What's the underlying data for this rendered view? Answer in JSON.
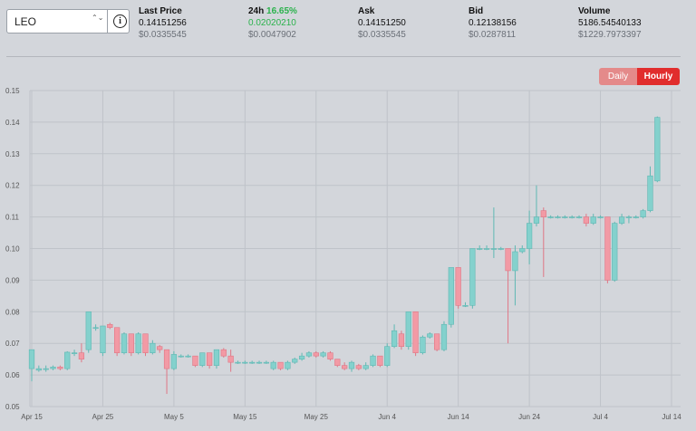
{
  "market": {
    "pair": "LEO",
    "arrows": "⌃⌄",
    "info_glyph": "i"
  },
  "stats": {
    "last_price": {
      "label": "Last Price",
      "value": "0.14151256",
      "usd": "$0.0335545"
    },
    "change_24h": {
      "label": "24h",
      "percent": "16.65%",
      "value": "0.02020210",
      "usd": "$0.0047902"
    },
    "ask": {
      "label": "Ask",
      "value": "0.14151250",
      "usd": "$0.0335545"
    },
    "bid": {
      "label": "Bid",
      "value": "0.12138156",
      "usd": "$0.0287811"
    },
    "volume": {
      "label": "Volume",
      "value": "5186.54540133",
      "usd": "$1229.7973397"
    }
  },
  "toggle": {
    "daily": "Daily",
    "hourly": "Hourly",
    "active": "Hourly"
  },
  "colors": {
    "up": "#84d1cd",
    "down": "#f29aa5",
    "active_button": "#e12d2d",
    "inactive_button": "#e48a8a",
    "positive_text": "#2bb24c"
  },
  "chart_data": {
    "type": "candlestick",
    "title": "",
    "xlabel": "",
    "ylabel": "",
    "ylim": [
      0.05,
      0.15
    ],
    "grid": true,
    "y_ticks": [
      "0.15",
      "0.14",
      "0.13",
      "0.12",
      "0.11",
      "0.10",
      "0.09",
      "0.08",
      "0.07",
      "0.06",
      "0.05"
    ],
    "x_ticks": [
      "Apr 15",
      "Apr 25",
      "May 5",
      "May 15",
      "May 25",
      "Jun 4",
      "Jun 14",
      "Jun 24",
      "Jul 4",
      "Jul 14"
    ],
    "x_start": "Apr 15",
    "x_end": "Jul 14",
    "candles": [
      {
        "date": "Apr 15",
        "open": 0.062,
        "close": 0.068,
        "high": 0.068,
        "low": 0.058
      },
      {
        "date": "Apr 16",
        "open": 0.0615,
        "close": 0.062,
        "high": 0.063,
        "low": 0.061
      },
      {
        "date": "Apr 17",
        "open": 0.062,
        "close": 0.062,
        "high": 0.063,
        "low": 0.061
      },
      {
        "date": "Apr 18",
        "open": 0.062,
        "close": 0.0625,
        "high": 0.063,
        "low": 0.0615
      },
      {
        "date": "Apr 19",
        "open": 0.0625,
        "close": 0.062,
        "high": 0.063,
        "low": 0.0615
      },
      {
        "date": "Apr 20",
        "open": 0.062,
        "close": 0.0672,
        "high": 0.0675,
        "low": 0.0615
      },
      {
        "date": "Apr 21",
        "open": 0.067,
        "close": 0.067,
        "high": 0.068,
        "low": 0.066
      },
      {
        "date": "Apr 22",
        "open": 0.067,
        "close": 0.065,
        "high": 0.07,
        "low": 0.064
      },
      {
        "date": "Apr 23",
        "open": 0.068,
        "close": 0.08,
        "high": 0.08,
        "low": 0.067
      },
      {
        "date": "Apr 24",
        "open": 0.075,
        "close": 0.075,
        "high": 0.076,
        "low": 0.074
      },
      {
        "date": "Apr 25",
        "open": 0.067,
        "close": 0.0755,
        "high": 0.0755,
        "low": 0.066
      },
      {
        "date": "Apr 26",
        "open": 0.076,
        "close": 0.075,
        "high": 0.0765,
        "low": 0.0745
      },
      {
        "date": "Apr 27",
        "open": 0.075,
        "close": 0.067,
        "high": 0.075,
        "low": 0.066
      },
      {
        "date": "Apr 28",
        "open": 0.067,
        "close": 0.073,
        "high": 0.0735,
        "low": 0.0665
      },
      {
        "date": "Apr 29",
        "open": 0.073,
        "close": 0.067,
        "high": 0.073,
        "low": 0.066
      },
      {
        "date": "Apr 30",
        "open": 0.067,
        "close": 0.073,
        "high": 0.0735,
        "low": 0.0665
      },
      {
        "date": "May 1",
        "open": 0.073,
        "close": 0.067,
        "high": 0.073,
        "low": 0.066
      },
      {
        "date": "May 2",
        "open": 0.067,
        "close": 0.07,
        "high": 0.071,
        "low": 0.0665
      },
      {
        "date": "May 3",
        "open": 0.069,
        "close": 0.068,
        "high": 0.0695,
        "low": 0.067
      },
      {
        "date": "May 4",
        "open": 0.068,
        "close": 0.062,
        "high": 0.068,
        "low": 0.054
      },
      {
        "date": "May 5",
        "open": 0.062,
        "close": 0.0665,
        "high": 0.0675,
        "low": 0.0615
      },
      {
        "date": "May 6",
        "open": 0.066,
        "close": 0.066,
        "high": 0.0665,
        "low": 0.0655
      },
      {
        "date": "May 7",
        "open": 0.066,
        "close": 0.066,
        "high": 0.0665,
        "low": 0.0655
      },
      {
        "date": "May 8",
        "open": 0.066,
        "close": 0.063,
        "high": 0.066,
        "low": 0.0625
      },
      {
        "date": "May 9",
        "open": 0.063,
        "close": 0.067,
        "high": 0.067,
        "low": 0.0625
      },
      {
        "date": "May 10",
        "open": 0.067,
        "close": 0.063,
        "high": 0.067,
        "low": 0.062
      },
      {
        "date": "May 11",
        "open": 0.063,
        "close": 0.068,
        "high": 0.068,
        "low": 0.062
      },
      {
        "date": "May 12",
        "open": 0.068,
        "close": 0.066,
        "high": 0.0685,
        "low": 0.0655
      },
      {
        "date": "May 13",
        "open": 0.066,
        "close": 0.064,
        "high": 0.068,
        "low": 0.061
      },
      {
        "date": "May 14",
        "open": 0.064,
        "close": 0.064,
        "high": 0.0645,
        "low": 0.0635
      },
      {
        "date": "May 15",
        "open": 0.064,
        "close": 0.064,
        "high": 0.0645,
        "low": 0.0635
      },
      {
        "date": "May 16",
        "open": 0.064,
        "close": 0.064,
        "high": 0.0645,
        "low": 0.0635
      },
      {
        "date": "May 17",
        "open": 0.064,
        "close": 0.064,
        "high": 0.0645,
        "low": 0.0635
      },
      {
        "date": "May 18",
        "open": 0.064,
        "close": 0.064,
        "high": 0.0645,
        "low": 0.0635
      },
      {
        "date": "May 19",
        "open": 0.062,
        "close": 0.064,
        "high": 0.0645,
        "low": 0.0615
      },
      {
        "date": "May 20",
        "open": 0.064,
        "close": 0.062,
        "high": 0.064,
        "low": 0.0615
      },
      {
        "date": "May 21",
        "open": 0.062,
        "close": 0.064,
        "high": 0.0645,
        "low": 0.0615
      },
      {
        "date": "May 22",
        "open": 0.064,
        "close": 0.065,
        "high": 0.0655,
        "low": 0.0635
      },
      {
        "date": "May 23",
        "open": 0.065,
        "close": 0.066,
        "high": 0.067,
        "low": 0.0645
      },
      {
        "date": "May 24",
        "open": 0.066,
        "close": 0.067,
        "high": 0.0675,
        "low": 0.0655
      },
      {
        "date": "May 25",
        "open": 0.067,
        "close": 0.066,
        "high": 0.0675,
        "low": 0.0655
      },
      {
        "date": "May 26",
        "open": 0.066,
        "close": 0.067,
        "high": 0.0675,
        "low": 0.0655
      },
      {
        "date": "May 27",
        "open": 0.067,
        "close": 0.065,
        "high": 0.0675,
        "low": 0.0645
      },
      {
        "date": "May 28",
        "open": 0.065,
        "close": 0.063,
        "high": 0.065,
        "low": 0.0625
      },
      {
        "date": "May 29",
        "open": 0.063,
        "close": 0.062,
        "high": 0.064,
        "low": 0.0615
      },
      {
        "date": "May 30",
        "open": 0.062,
        "close": 0.064,
        "high": 0.0645,
        "low": 0.061
      },
      {
        "date": "May 31",
        "open": 0.063,
        "close": 0.062,
        "high": 0.0635,
        "low": 0.0615
      },
      {
        "date": "Jun 1",
        "open": 0.062,
        "close": 0.063,
        "high": 0.064,
        "low": 0.0615
      },
      {
        "date": "Jun 2",
        "open": 0.063,
        "close": 0.066,
        "high": 0.0665,
        "low": 0.0625
      },
      {
        "date": "Jun 3",
        "open": 0.066,
        "close": 0.063,
        "high": 0.066,
        "low": 0.0625
      },
      {
        "date": "Jun 4",
        "open": 0.063,
        "close": 0.069,
        "high": 0.07,
        "low": 0.0625
      },
      {
        "date": "Jun 5",
        "open": 0.069,
        "close": 0.074,
        "high": 0.076,
        "low": 0.0685
      },
      {
        "date": "Jun 6",
        "open": 0.073,
        "close": 0.069,
        "high": 0.074,
        "low": 0.068
      },
      {
        "date": "Jun 7",
        "open": 0.069,
        "close": 0.08,
        "high": 0.08,
        "low": 0.068
      },
      {
        "date": "Jun 8",
        "open": 0.08,
        "close": 0.067,
        "high": 0.08,
        "low": 0.066
      },
      {
        "date": "Jun 9",
        "open": 0.067,
        "close": 0.072,
        "high": 0.0725,
        "low": 0.0665
      },
      {
        "date": "Jun 10",
        "open": 0.072,
        "close": 0.073,
        "high": 0.0735,
        "low": 0.0715
      },
      {
        "date": "Jun 11",
        "open": 0.073,
        "close": 0.068,
        "high": 0.073,
        "low": 0.0675
      },
      {
        "date": "Jun 12",
        "open": 0.068,
        "close": 0.076,
        "high": 0.077,
        "low": 0.0675
      },
      {
        "date": "Jun 13",
        "open": 0.076,
        "close": 0.094,
        "high": 0.094,
        "low": 0.075
      },
      {
        "date": "Jun 14",
        "open": 0.094,
        "close": 0.082,
        "high": 0.094,
        "low": 0.081
      },
      {
        "date": "Jun 15",
        "open": 0.082,
        "close": 0.082,
        "high": 0.083,
        "low": 0.0815
      },
      {
        "date": "Jun 16",
        "open": 0.082,
        "close": 0.1,
        "high": 0.1,
        "low": 0.081
      },
      {
        "date": "Jun 17",
        "open": 0.1,
        "close": 0.1,
        "high": 0.101,
        "low": 0.0995
      },
      {
        "date": "Jun 18",
        "open": 0.1,
        "close": 0.1,
        "high": 0.101,
        "low": 0.0995
      },
      {
        "date": "Jun 19",
        "open": 0.1,
        "close": 0.1,
        "high": 0.113,
        "low": 0.097
      },
      {
        "date": "Jun 20",
        "open": 0.1,
        "close": 0.1,
        "high": 0.1005,
        "low": 0.0995
      },
      {
        "date": "Jun 21",
        "open": 0.1,
        "close": 0.093,
        "high": 0.1,
        "low": 0.07
      },
      {
        "date": "Jun 22",
        "open": 0.093,
        "close": 0.099,
        "high": 0.101,
        "low": 0.082
      },
      {
        "date": "Jun 23",
        "open": 0.099,
        "close": 0.1,
        "high": 0.101,
        "low": 0.0985
      },
      {
        "date": "Jun 24",
        "open": 0.1,
        "close": 0.108,
        "high": 0.112,
        "low": 0.095
      },
      {
        "date": "Jun 25",
        "open": 0.108,
        "close": 0.11,
        "high": 0.12,
        "low": 0.107
      },
      {
        "date": "Jun 26",
        "open": 0.112,
        "close": 0.11,
        "high": 0.113,
        "low": 0.091
      },
      {
        "date": "Jun 27",
        "open": 0.11,
        "close": 0.11,
        "high": 0.1105,
        "low": 0.1095
      },
      {
        "date": "Jun 28",
        "open": 0.11,
        "close": 0.11,
        "high": 0.1105,
        "low": 0.1095
      },
      {
        "date": "Jun 29",
        "open": 0.11,
        "close": 0.11,
        "high": 0.1105,
        "low": 0.1095
      },
      {
        "date": "Jun 30",
        "open": 0.11,
        "close": 0.11,
        "high": 0.1105,
        "low": 0.1095
      },
      {
        "date": "Jul 1",
        "open": 0.11,
        "close": 0.11,
        "high": 0.1105,
        "low": 0.1095
      },
      {
        "date": "Jul 2",
        "open": 0.11,
        "close": 0.108,
        "high": 0.111,
        "low": 0.107
      },
      {
        "date": "Jul 3",
        "open": 0.108,
        "close": 0.11,
        "high": 0.111,
        "low": 0.1075
      },
      {
        "date": "Jul 4",
        "open": 0.11,
        "close": 0.11,
        "high": 0.1105,
        "low": 0.1095
      },
      {
        "date": "Jul 5",
        "open": 0.11,
        "close": 0.09,
        "high": 0.11,
        "low": 0.089
      },
      {
        "date": "Jul 6",
        "open": 0.09,
        "close": 0.108,
        "high": 0.1085,
        "low": 0.0895
      },
      {
        "date": "Jul 7",
        "open": 0.108,
        "close": 0.11,
        "high": 0.111,
        "low": 0.1075
      },
      {
        "date": "Jul 8",
        "open": 0.11,
        "close": 0.11,
        "high": 0.1105,
        "low": 0.108
      },
      {
        "date": "Jul 9",
        "open": 0.11,
        "close": 0.11,
        "high": 0.1105,
        "low": 0.1095
      },
      {
        "date": "Jul 10",
        "open": 0.11,
        "close": 0.112,
        "high": 0.1125,
        "low": 0.1095
      },
      {
        "date": "Jul 11",
        "open": 0.112,
        "close": 0.123,
        "high": 0.126,
        "low": 0.1115
      },
      {
        "date": "Jul 12",
        "open": 0.1214,
        "close": 0.1415,
        "high": 0.1418,
        "low": 0.121
      }
    ]
  }
}
